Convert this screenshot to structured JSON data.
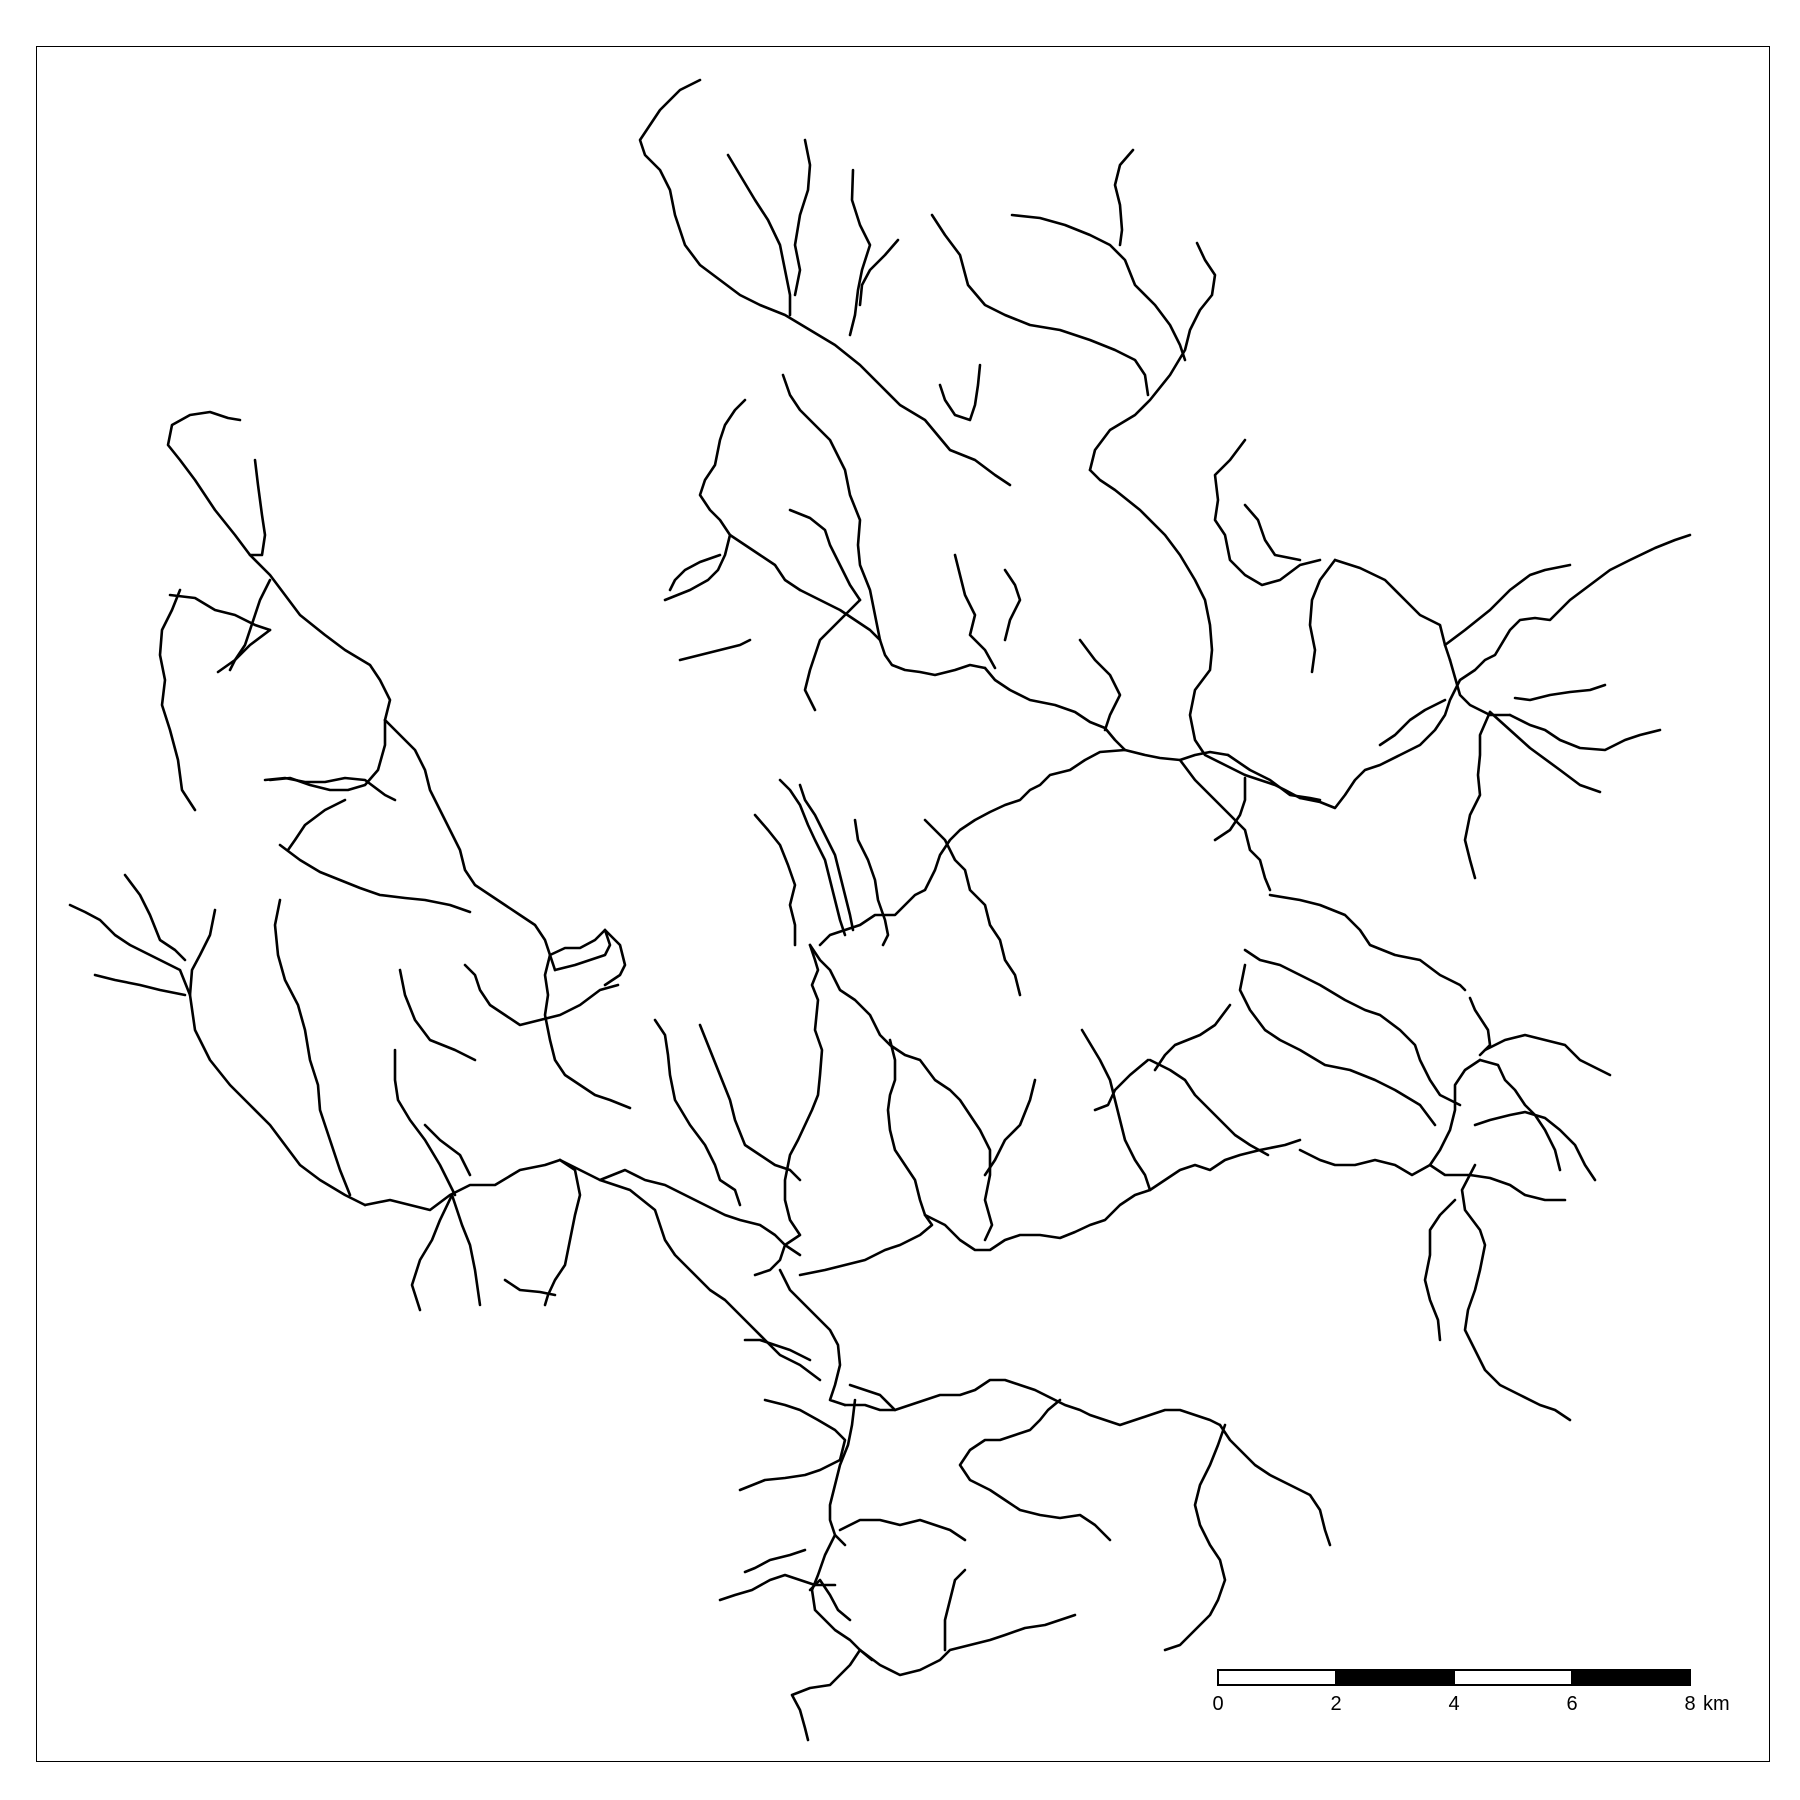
{
  "map": {
    "type": "stream-network",
    "scale_bar": {
      "ticks": [
        "0",
        "2",
        "4",
        "6",
        "8"
      ],
      "unit": "km",
      "segments": [
        {
          "from": 0,
          "to": 2,
          "fill": "white"
        },
        {
          "from": 2,
          "to": 4,
          "fill": "black"
        },
        {
          "from": 4,
          "to": 6,
          "fill": "white"
        },
        {
          "from": 6,
          "to": 8,
          "fill": "black"
        }
      ]
    },
    "colors": {
      "stream": "#000000",
      "background": "#ffffff",
      "frame": "#000000"
    }
  }
}
